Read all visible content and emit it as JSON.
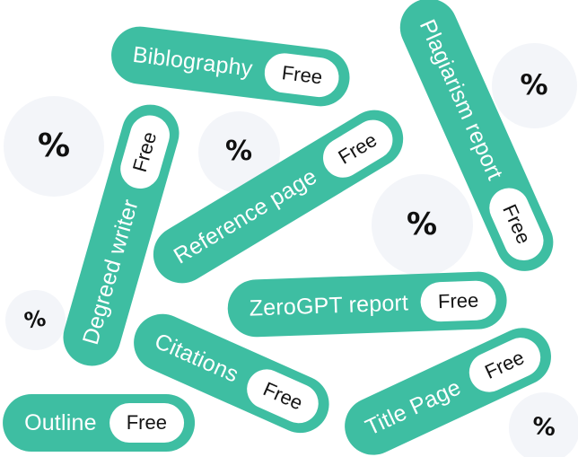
{
  "colors": {
    "badge_teal": "#3ebea2",
    "badge_text": "#ffffff",
    "free_pill_bg": "#ffffff",
    "free_pill_text": "#141414",
    "circle_bg": "#f3f5f9",
    "percent_color": "#101010",
    "page_bg": "#ffffff"
  },
  "badges": [
    {
      "label": "Biblography",
      "tag": "Free"
    },
    {
      "label": "Plagiarism report",
      "tag": "Free"
    },
    {
      "label": "Degreed writer",
      "tag": "Free"
    },
    {
      "label": "Reference page",
      "tag": "Free"
    },
    {
      "label": "ZeroGPT report",
      "tag": "Free"
    },
    {
      "label": "Citations",
      "tag": "Free"
    },
    {
      "label": "Title Page",
      "tag": "Free"
    },
    {
      "label": "Outline",
      "tag": "Free"
    }
  ],
  "percent": {
    "symbol": "%"
  }
}
